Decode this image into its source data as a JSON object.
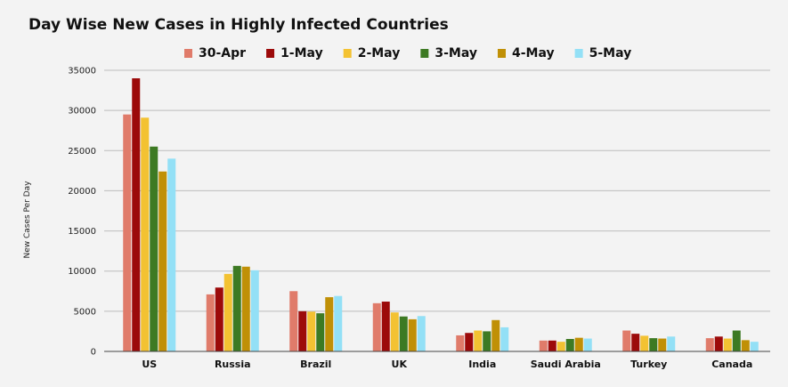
{
  "chart_data": {
    "type": "bar",
    "title": "Day Wise New Cases in Highly Infected Countries",
    "xlabel": "",
    "ylabel": "New Cases Per Day",
    "ylim": [
      0,
      35000
    ],
    "yticks": [
      0,
      5000,
      10000,
      15000,
      20000,
      25000,
      30000,
      35000
    ],
    "grid": true,
    "legend_position": "top",
    "categories": [
      "US",
      "Russia",
      "Brazil",
      "UK",
      "India",
      "Saudi Arabia",
      "Turkey",
      "Canada"
    ],
    "series": [
      {
        "name": "30-Apr",
        "color": "#e07b6a",
        "values": [
          29500,
          7100,
          7500,
          6000,
          2000,
          1350,
          2600,
          1650
        ]
      },
      {
        "name": "1-May",
        "color": "#9c0a0a",
        "values": [
          34000,
          7950,
          5000,
          6200,
          2300,
          1350,
          2200,
          1850
        ]
      },
      {
        "name": "2-May",
        "color": "#f3c232",
        "values": [
          29100,
          9650,
          4950,
          4850,
          2600,
          1200,
          1950,
          1600
        ]
      },
      {
        "name": "3-May",
        "color": "#3d7a23",
        "values": [
          25500,
          10650,
          4750,
          4350,
          2500,
          1550,
          1650,
          2600
        ]
      },
      {
        "name": "4-May",
        "color": "#c09006",
        "values": [
          22400,
          10550,
          6750,
          4000,
          3900,
          1700,
          1600,
          1400
        ]
      },
      {
        "name": "5-May",
        "color": "#93e0f6",
        "values": [
          24000,
          10100,
          6900,
          4400,
          3000,
          1600,
          1850,
          1200
        ]
      }
    ]
  }
}
